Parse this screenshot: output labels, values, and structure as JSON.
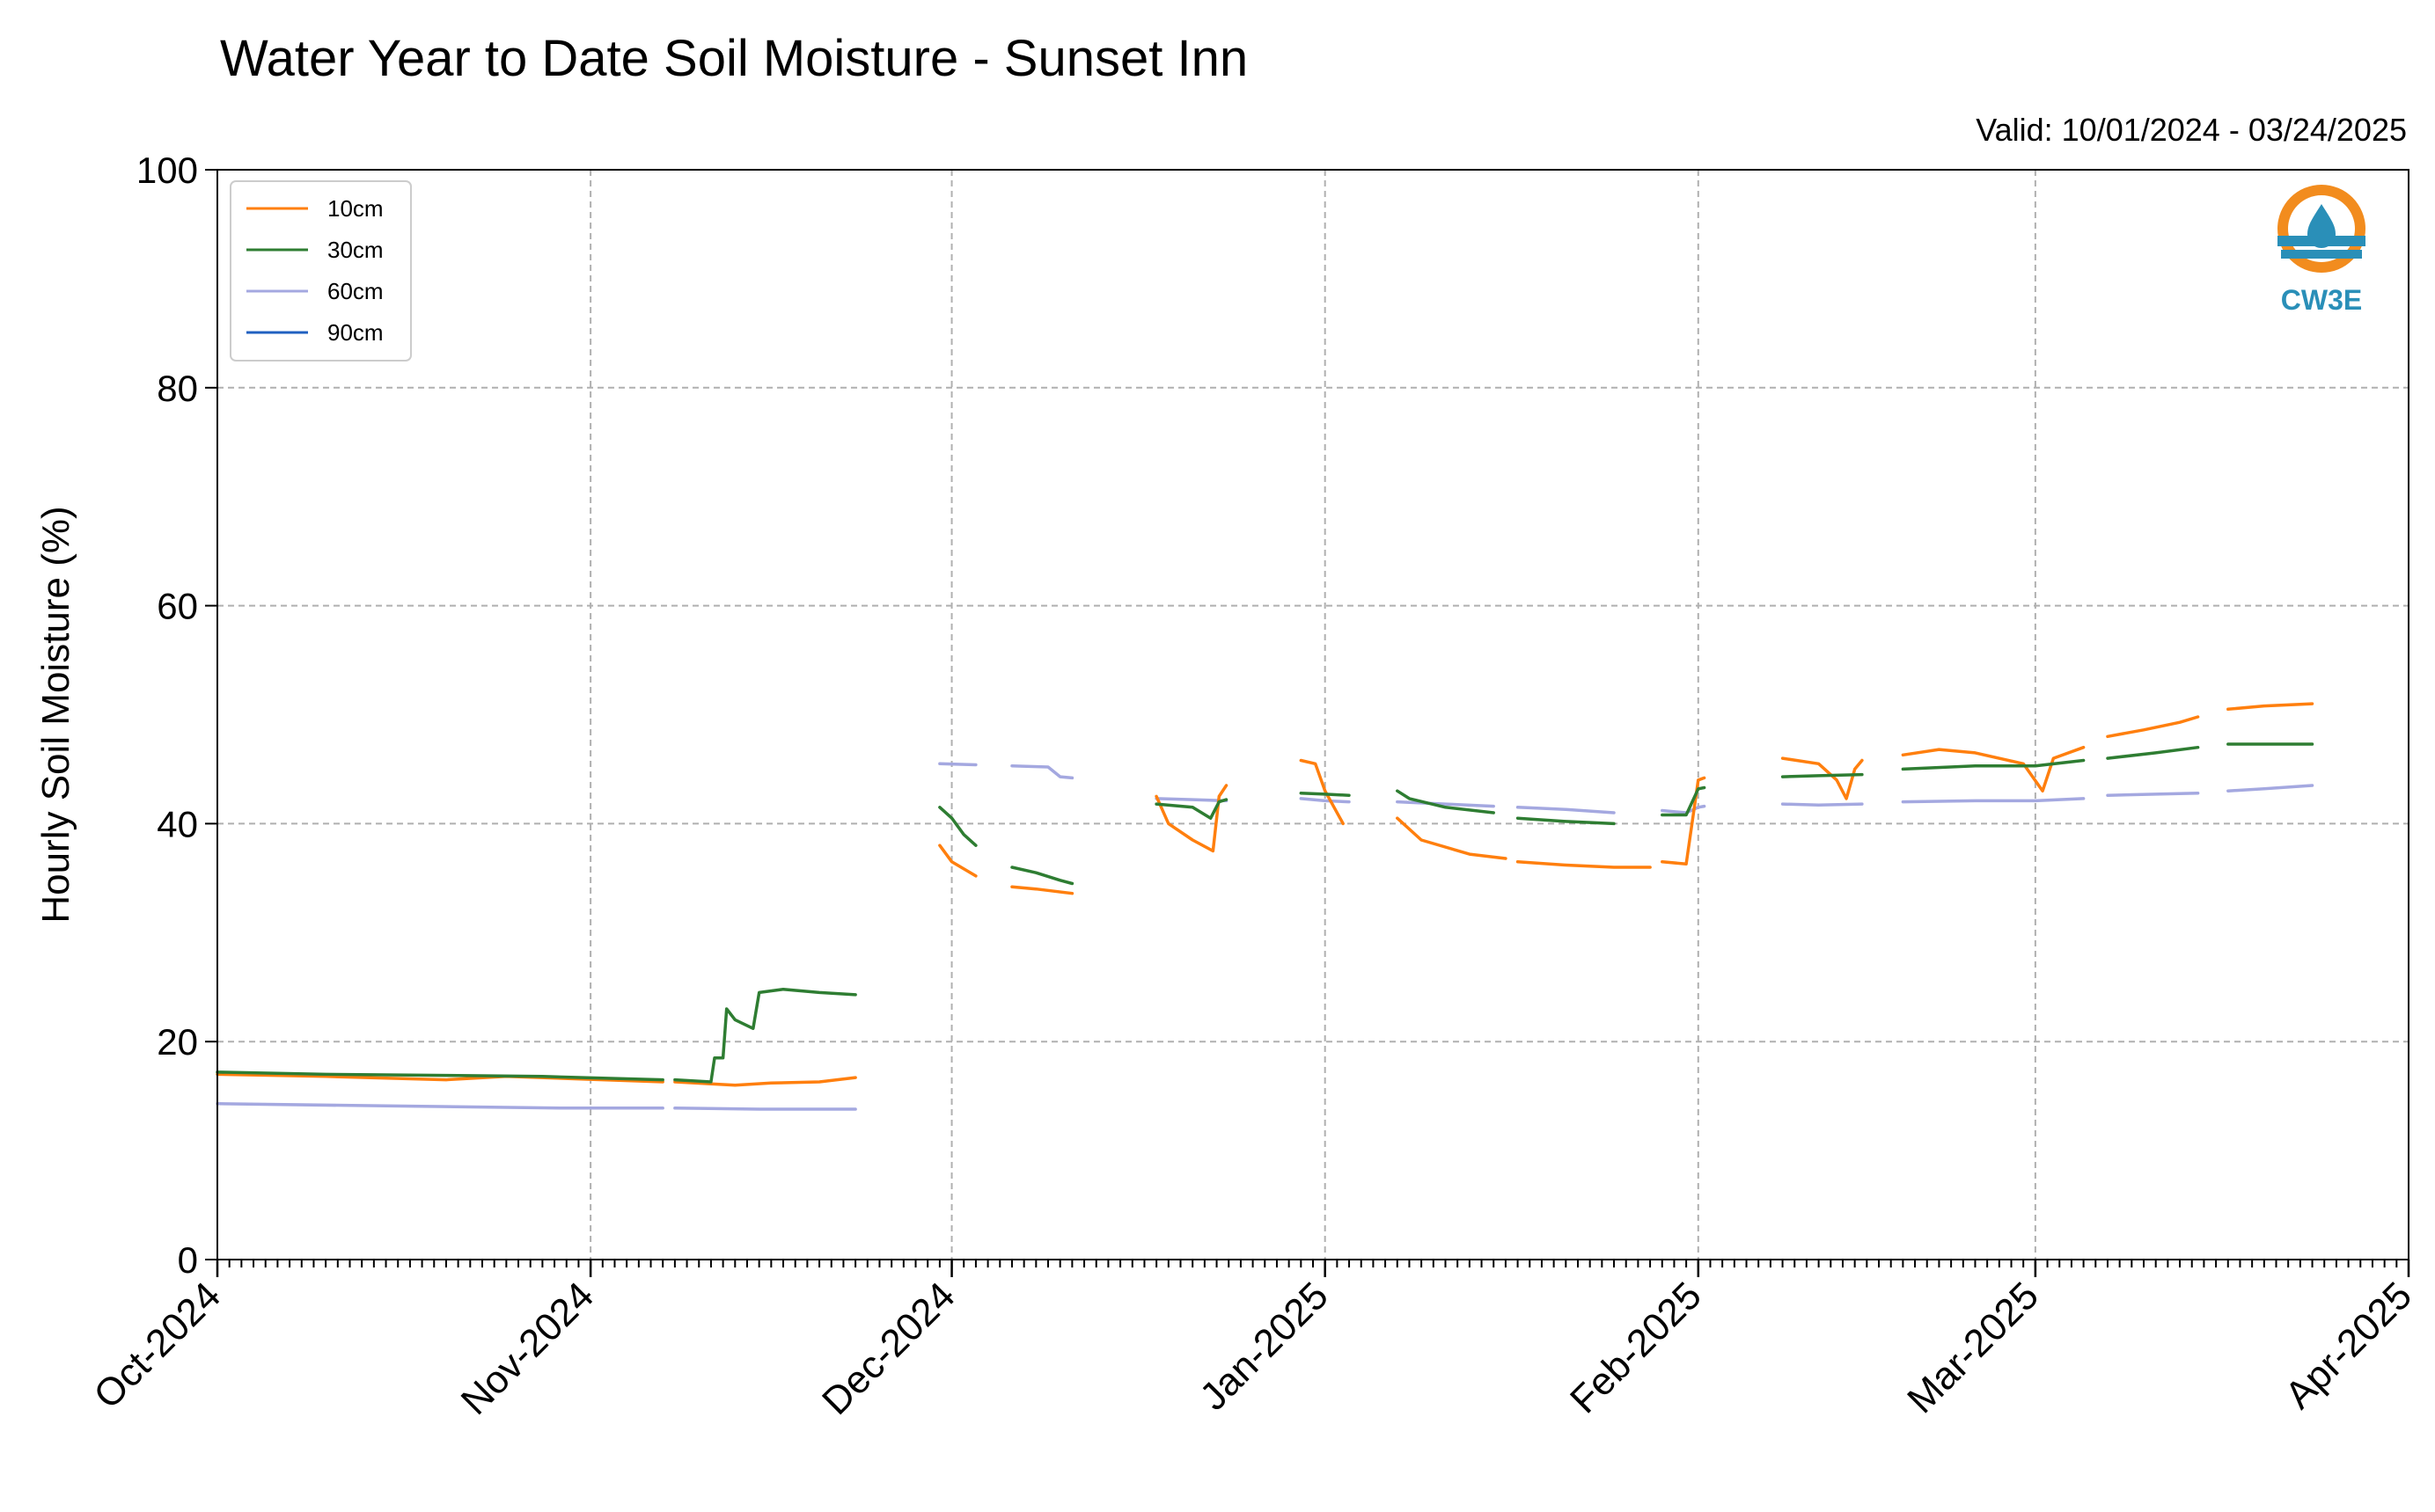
{
  "chart_data": {
    "type": "line",
    "title": "Water Year to Date Soil Moisture - Sunset Inn",
    "subtitle": "Valid: 10/01/2024 - 03/24/2025",
    "xlabel": "",
    "ylabel": "Hourly Soil Moisture (%)",
    "xlim": [
      "2024-10-01",
      "2025-04-01"
    ],
    "ylim": [
      0,
      100
    ],
    "yticks": [
      0,
      20,
      40,
      60,
      80,
      100
    ],
    "xticks": [
      {
        "date": "2024-10-01",
        "label": "Oct-2024"
      },
      {
        "date": "2024-11-01",
        "label": "Nov-2024"
      },
      {
        "date": "2024-12-01",
        "label": "Dec-2024"
      },
      {
        "date": "2025-01-01",
        "label": "Jan-2025"
      },
      {
        "date": "2025-02-01",
        "label": "Feb-2025"
      },
      {
        "date": "2025-03-01",
        "label": "Mar-2025"
      },
      {
        "date": "2025-04-01",
        "label": "Apr-2025"
      }
    ],
    "grid": true,
    "legend_position": "top-left",
    "series": [
      {
        "name": "10cm",
        "color": "#ff7f0e",
        "segments": [
          [
            [
              "2024-10-01",
              17.0
            ],
            [
              "2024-10-10",
              16.8
            ],
            [
              "2024-10-20",
              16.5
            ],
            [
              "2024-10-25",
              16.8
            ],
            [
              "2024-11-07",
              16.3
            ]
          ],
          [
            [
              "2024-11-08",
              16.3
            ],
            [
              "2024-11-13",
              16.0
            ],
            [
              "2024-11-16",
              16.2
            ],
            [
              "2024-11-20",
              16.3
            ],
            [
              "2024-11-23",
              16.7
            ]
          ],
          [
            [
              "2024-11-30",
              38.0
            ],
            [
              "2024-12-01",
              36.5
            ],
            [
              "2024-12-03",
              35.2
            ]
          ],
          [
            [
              "2024-12-06",
              34.2
            ],
            [
              "2024-12-08",
              34.0
            ],
            [
              "2024-12-11",
              33.6
            ]
          ],
          [
            [
              "2024-12-18",
              42.5
            ],
            [
              "2024-12-19",
              40.0
            ],
            [
              "2024-12-21",
              38.5
            ],
            [
              "2024-12-22.7",
              37.5
            ],
            [
              "2024-12-23.2",
              42.5
            ],
            [
              "2024-12-23.8",
              43.5
            ]
          ],
          [
            [
              "2024-12-30",
              45.8
            ],
            [
              "2024-12-31.2",
              45.5
            ],
            [
              "2025-01-01",
              43.0
            ],
            [
              "2025-01-02.5",
              40.0
            ]
          ],
          [
            [
              "2025-01-07",
              40.5
            ],
            [
              "2025-01-09",
              38.5
            ],
            [
              "2025-01-13",
              37.2
            ],
            [
              "2025-01-16",
              36.8
            ]
          ],
          [
            [
              "2025-01-17",
              36.5
            ],
            [
              "2025-01-21",
              36.2
            ],
            [
              "2025-01-25",
              36.0
            ],
            [
              "2025-01-28",
              36.0
            ]
          ],
          [
            [
              "2025-01-29",
              36.5
            ],
            [
              "2025-01-31",
              36.3
            ],
            [
              "2025-02-01",
              44.0
            ],
            [
              "2025-02-01.5",
              44.2
            ]
          ],
          [
            [
              "2025-02-08",
              46.0
            ],
            [
              "2025-02-11",
              45.5
            ],
            [
              "2025-02-12.5",
              44.0
            ],
            [
              "2025-02-13.3",
              42.3
            ],
            [
              "2025-02-14",
              45.0
            ],
            [
              "2025-02-14.6",
              45.8
            ]
          ],
          [
            [
              "2025-02-18",
              46.3
            ],
            [
              "2025-02-21",
              46.8
            ],
            [
              "2025-02-24",
              46.5
            ],
            [
              "2025-02-28",
              45.5
            ],
            [
              "2025-03-01.6",
              43.0
            ],
            [
              "2025-03-02.5",
              46.0
            ],
            [
              "2025-03-05",
              47.0
            ]
          ],
          [
            [
              "2025-03-07",
              48.0
            ],
            [
              "2025-03-10",
              48.6
            ],
            [
              "2025-03-13",
              49.3
            ],
            [
              "2025-03-14.5",
              49.8
            ]
          ],
          [
            [
              "2025-03-17",
              50.5
            ],
            [
              "2025-03-20",
              50.8
            ],
            [
              "2025-03-24",
              51.0
            ]
          ]
        ]
      },
      {
        "name": "30cm",
        "color": "#2e7d32",
        "segments": [
          [
            [
              "2024-10-01",
              17.2
            ],
            [
              "2024-10-10",
              17.0
            ],
            [
              "2024-10-20",
              16.9
            ],
            [
              "2024-10-28",
              16.8
            ],
            [
              "2024-11-07",
              16.5
            ]
          ],
          [
            [
              "2024-11-08",
              16.5
            ],
            [
              "2024-11-11",
              16.3
            ],
            [
              "2024-11-11.3",
              18.5
            ],
            [
              "2024-11-12",
              18.5
            ],
            [
              "2024-11-12.3",
              23.0
            ],
            [
              "2024-11-13",
              22.0
            ],
            [
              "2024-11-14.5",
              21.2
            ],
            [
              "2024-11-15",
              24.5
            ],
            [
              "2024-11-17",
              24.8
            ],
            [
              "2024-11-20",
              24.5
            ],
            [
              "2024-11-23",
              24.3
            ]
          ],
          [
            [
              "2024-11-30",
              41.5
            ],
            [
              "2024-12-01",
              40.5
            ],
            [
              "2024-12-02",
              39.0
            ],
            [
              "2024-12-03",
              38.0
            ]
          ],
          [
            [
              "2024-12-06",
              36.0
            ],
            [
              "2024-12-08",
              35.5
            ],
            [
              "2024-12-10",
              34.8
            ],
            [
              "2024-12-11",
              34.5
            ]
          ],
          [
            [
              "2024-12-18",
              41.8
            ],
            [
              "2024-12-21",
              41.5
            ],
            [
              "2024-12-22.5",
              40.5
            ],
            [
              "2024-12-23.2",
              42.0
            ],
            [
              "2024-12-23.8",
              42.2
            ]
          ],
          [
            [
              "2024-12-30",
              42.8
            ],
            [
              "2025-01-01",
              42.7
            ],
            [
              "2025-01-03",
              42.6
            ]
          ],
          [
            [
              "2025-01-07",
              43.0
            ],
            [
              "2025-01-08",
              42.3
            ],
            [
              "2025-01-11",
              41.5
            ],
            [
              "2025-01-15",
              41.0
            ]
          ],
          [
            [
              "2025-01-17",
              40.5
            ],
            [
              "2025-01-21",
              40.2
            ],
            [
              "2025-01-25",
              40.0
            ]
          ],
          [
            [
              "2025-01-29",
              40.8
            ],
            [
              "2025-01-31",
              40.8
            ],
            [
              "2025-02-01",
              43.2
            ],
            [
              "2025-02-01.5",
              43.3
            ]
          ],
          [
            [
              "2025-02-08",
              44.3
            ],
            [
              "2025-02-11",
              44.4
            ],
            [
              "2025-02-14.6",
              44.5
            ]
          ],
          [
            [
              "2025-02-18",
              45.0
            ],
            [
              "2025-02-24",
              45.3
            ],
            [
              "2025-03-01",
              45.3
            ],
            [
              "2025-03-05",
              45.8
            ]
          ],
          [
            [
              "2025-03-07",
              46.0
            ],
            [
              "2025-03-11",
              46.5
            ],
            [
              "2025-03-14.5",
              47.0
            ]
          ],
          [
            [
              "2025-03-17",
              47.3
            ],
            [
              "2025-03-20",
              47.3
            ],
            [
              "2025-03-24",
              47.3
            ]
          ]
        ]
      },
      {
        "name": "60cm",
        "color": "#a4a8e0",
        "segments": [
          [
            [
              "2024-10-01",
              14.3
            ],
            [
              "2024-10-15",
              14.1
            ],
            [
              "2024-10-30",
              13.9
            ],
            [
              "2024-11-07",
              13.9
            ]
          ],
          [
            [
              "2024-11-08",
              13.9
            ],
            [
              "2024-11-15",
              13.8
            ],
            [
              "2024-11-23",
              13.8
            ]
          ],
          [
            [
              "2024-11-30",
              45.5
            ],
            [
              "2024-12-03",
              45.4
            ]
          ],
          [
            [
              "2024-12-06",
              45.3
            ],
            [
              "2024-12-09",
              45.2
            ],
            [
              "2024-12-10",
              44.3
            ],
            [
              "2024-12-11",
              44.2
            ]
          ],
          [
            [
              "2024-12-18",
              42.3
            ],
            [
              "2024-12-21",
              42.2
            ],
            [
              "2024-12-23.8",
              42.1
            ]
          ],
          [
            [
              "2024-12-30",
              42.3
            ],
            [
              "2025-01-01",
              42.1
            ],
            [
              "2025-01-03",
              42.0
            ]
          ],
          [
            [
              "2025-01-07",
              42.0
            ],
            [
              "2025-01-11",
              41.8
            ],
            [
              "2025-01-15",
              41.6
            ]
          ],
          [
            [
              "2025-01-17",
              41.5
            ],
            [
              "2025-01-21",
              41.3
            ],
            [
              "2025-01-25",
              41.0
            ]
          ],
          [
            [
              "2025-01-29",
              41.2
            ],
            [
              "2025-01-31",
              41.0
            ],
            [
              "2025-02-01",
              41.5
            ],
            [
              "2025-02-01.5",
              41.6
            ]
          ],
          [
            [
              "2025-02-08",
              41.8
            ],
            [
              "2025-02-11",
              41.7
            ],
            [
              "2025-02-14.6",
              41.8
            ]
          ],
          [
            [
              "2025-02-18",
              42.0
            ],
            [
              "2025-02-24",
              42.1
            ],
            [
              "2025-03-01",
              42.1
            ],
            [
              "2025-03-05",
              42.3
            ]
          ],
          [
            [
              "2025-03-07",
              42.6
            ],
            [
              "2025-03-11",
              42.7
            ],
            [
              "2025-03-14.5",
              42.8
            ]
          ],
          [
            [
              "2025-03-17",
              43.0
            ],
            [
              "2025-03-20",
              43.2
            ],
            [
              "2025-03-24",
              43.5
            ]
          ]
        ]
      },
      {
        "name": "90cm",
        "color": "#2060c0",
        "segments": []
      }
    ]
  },
  "logo": {
    "text": "CW3E",
    "ring_color": "#f28c1e",
    "accent_color": "#2a8fb8"
  }
}
